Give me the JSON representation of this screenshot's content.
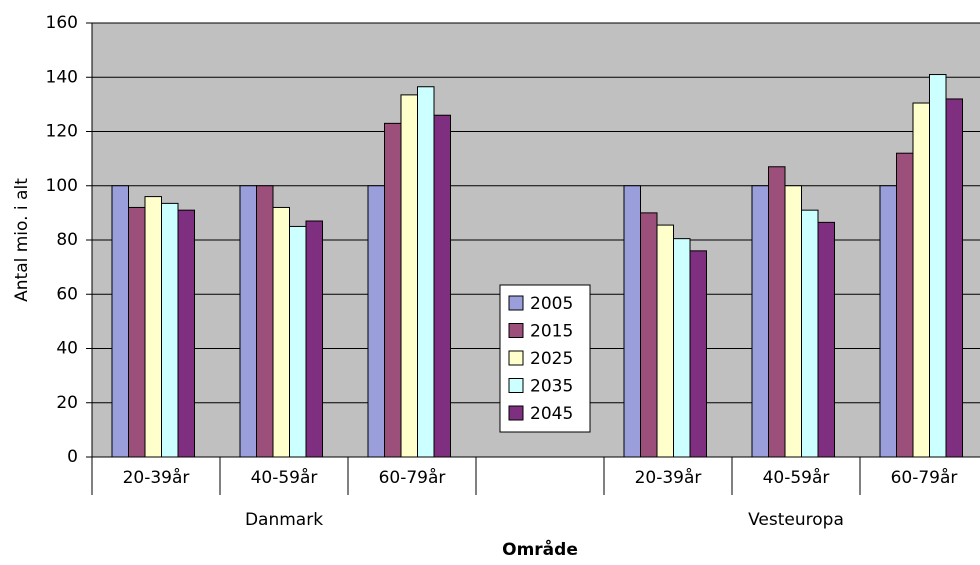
{
  "chart_data": {
    "type": "bar",
    "y_axis_label": "Antal mio. i alt",
    "x_axis_label": "Område",
    "categories": [
      "20-39år",
      "40-59år",
      "60-79år",
      null,
      "20-39år",
      "40-59år",
      "60-79år"
    ],
    "group_labels": [
      "Danmark",
      "Vesteuropa"
    ],
    "series": [
      {
        "name": "2005",
        "color": "#9a9fdc",
        "values": [
          100,
          100,
          100,
          null,
          100,
          100,
          100
        ]
      },
      {
        "name": "2015",
        "color": "#9c4f7a",
        "values": [
          92,
          100,
          123,
          null,
          90,
          107,
          112
        ]
      },
      {
        "name": "2025",
        "color": "#ffffcc",
        "values": [
          96,
          92,
          133.5,
          null,
          85.5,
          100,
          130.5
        ]
      },
      {
        "name": "2035",
        "color": "#ccffff",
        "values": [
          93.5,
          85,
          136.5,
          null,
          80.5,
          91,
          141
        ]
      },
      {
        "name": "2045",
        "color": "#7f2f7f",
        "values": [
          91,
          87,
          126,
          null,
          76,
          86.5,
          132
        ]
      }
    ],
    "ylim": [
      0,
      160
    ],
    "yticks": [
      0,
      20,
      40,
      60,
      80,
      100,
      120,
      140,
      160
    ],
    "grid": true,
    "legend": "center"
  }
}
